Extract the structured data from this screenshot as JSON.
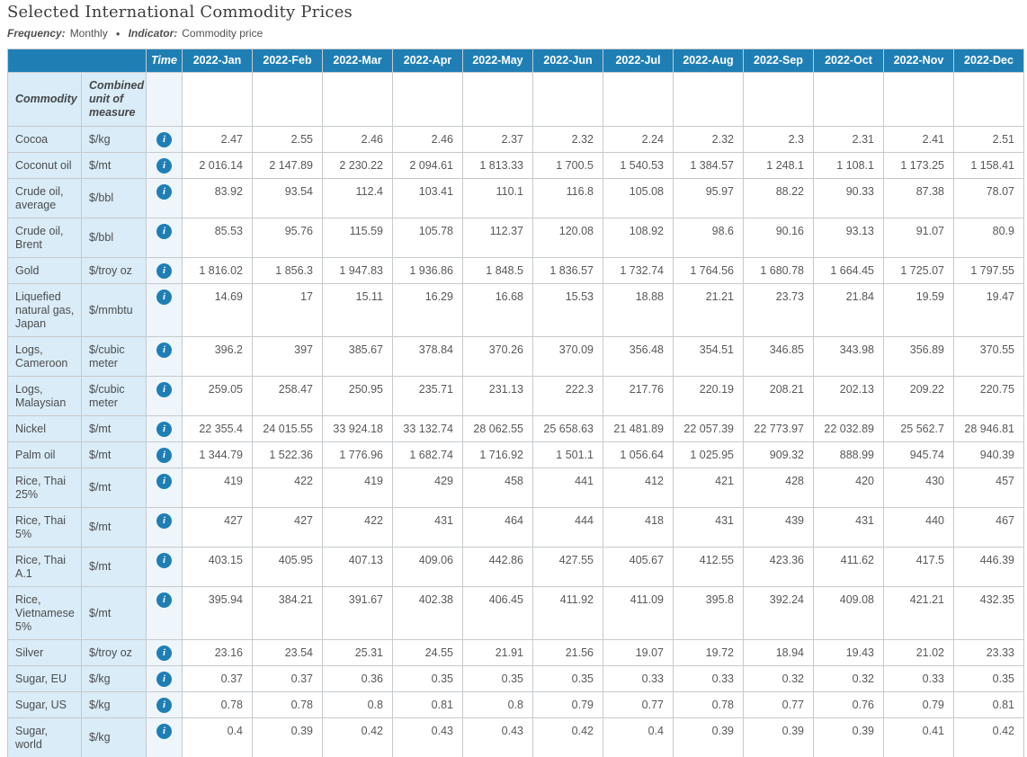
{
  "page": {
    "title": "Selected International Commodity Prices",
    "meta": {
      "frequency_label": "Frequency:",
      "frequency_value": "Monthly",
      "bullet": "●",
      "indicator_label": "Indicator:",
      "indicator_value": "Commodity price"
    }
  },
  "colors": {
    "header_blue": "#1f7fb5",
    "label_cell_blue": "#d9ecf7",
    "time_col_blue": "#eef6fb",
    "value_text": "#58585a"
  },
  "table": {
    "corner_label": "Time",
    "commodity_header": "Commodity",
    "unit_header": "Combined unit of measure",
    "info_icon_glyph": "i",
    "months": [
      "2022-Jan",
      "2022-Feb",
      "2022-Mar",
      "2022-Apr",
      "2022-May",
      "2022-Jun",
      "2022-Jul",
      "2022-Aug",
      "2022-Sep",
      "2022-Oct",
      "2022-Nov",
      "2022-Dec"
    ],
    "rows": [
      {
        "commodity": "Cocoa",
        "unit": "$/kg",
        "values": [
          "2.47",
          "2.55",
          "2.46",
          "2.46",
          "2.37",
          "2.32",
          "2.24",
          "2.32",
          "2.3",
          "2.31",
          "2.41",
          "2.51"
        ]
      },
      {
        "commodity": "Coconut oil",
        "unit": "$/mt",
        "values": [
          "2 016.14",
          "2 147.89",
          "2 230.22",
          "2 094.61",
          "1 813.33",
          "1 700.5",
          "1 540.53",
          "1 384.57",
          "1 248.1",
          "1 108.1",
          "1 173.25",
          "1 158.41"
        ]
      },
      {
        "commodity": "Crude oil, average",
        "unit": "$/bbl",
        "values": [
          "83.92",
          "93.54",
          "112.4",
          "103.41",
          "110.1",
          "116.8",
          "105.08",
          "95.97",
          "88.22",
          "90.33",
          "87.38",
          "78.07"
        ]
      },
      {
        "commodity": "Crude oil, Brent",
        "unit": "$/bbl",
        "values": [
          "85.53",
          "95.76",
          "115.59",
          "105.78",
          "112.37",
          "120.08",
          "108.92",
          "98.6",
          "90.16",
          "93.13",
          "91.07",
          "80.9"
        ]
      },
      {
        "commodity": "Gold",
        "unit": "$/troy oz",
        "values": [
          "1 816.02",
          "1 856.3",
          "1 947.83",
          "1 936.86",
          "1 848.5",
          "1 836.57",
          "1 732.74",
          "1 764.56",
          "1 680.78",
          "1 664.45",
          "1 725.07",
          "1 797.55"
        ]
      },
      {
        "commodity": "Liquefied natural gas, Japan",
        "unit": "$/mmbtu",
        "values": [
          "14.69",
          "17",
          "15.11",
          "16.29",
          "16.68",
          "15.53",
          "18.88",
          "21.21",
          "23.73",
          "21.84",
          "19.59",
          "19.47"
        ]
      },
      {
        "commodity": "Logs, Cameroon",
        "unit": "$/cubic meter",
        "values": [
          "396.2",
          "397",
          "385.67",
          "378.84",
          "370.26",
          "370.09",
          "356.48",
          "354.51",
          "346.85",
          "343.98",
          "356.89",
          "370.55"
        ]
      },
      {
        "commodity": "Logs, Malaysian",
        "unit": "$/cubic meter",
        "values": [
          "259.05",
          "258.47",
          "250.95",
          "235.71",
          "231.13",
          "222.3",
          "217.76",
          "220.19",
          "208.21",
          "202.13",
          "209.22",
          "220.75"
        ]
      },
      {
        "commodity": "Nickel",
        "unit": "$/mt",
        "values": [
          "22 355.4",
          "24 015.55",
          "33 924.18",
          "33 132.74",
          "28 062.55",
          "25 658.63",
          "21 481.89",
          "22 057.39",
          "22 773.97",
          "22 032.89",
          "25 562.7",
          "28 946.81"
        ]
      },
      {
        "commodity": "Palm oil",
        "unit": "$/mt",
        "values": [
          "1 344.79",
          "1 522.36",
          "1 776.96",
          "1 682.74",
          "1 716.92",
          "1 501.1",
          "1 056.64",
          "1 025.95",
          "909.32",
          "888.99",
          "945.74",
          "940.39"
        ]
      },
      {
        "commodity": "Rice, Thai 25%",
        "unit": "$/mt",
        "values": [
          "419",
          "422",
          "419",
          "429",
          "458",
          "441",
          "412",
          "421",
          "428",
          "420",
          "430",
          "457"
        ]
      },
      {
        "commodity": "Rice, Thai 5%",
        "unit": "$/mt",
        "values": [
          "427",
          "427",
          "422",
          "431",
          "464",
          "444",
          "418",
          "431",
          "439",
          "431",
          "440",
          "467"
        ]
      },
      {
        "commodity": "Rice, Thai A.1",
        "unit": "$/mt",
        "values": [
          "403.15",
          "405.95",
          "407.13",
          "409.06",
          "442.86",
          "427.55",
          "405.67",
          "412.55",
          "423.36",
          "411.62",
          "417.5",
          "446.39"
        ]
      },
      {
        "commodity": "Rice, Vietnamese 5%",
        "unit": "$/mt",
        "values": [
          "395.94",
          "384.21",
          "391.67",
          "402.38",
          "406.45",
          "411.92",
          "411.09",
          "395.8",
          "392.24",
          "409.08",
          "421.21",
          "432.35"
        ]
      },
      {
        "commodity": "Silver",
        "unit": "$/troy oz",
        "values": [
          "23.16",
          "23.54",
          "25.31",
          "24.55",
          "21.91",
          "21.56",
          "19.07",
          "19.72",
          "18.94",
          "19.43",
          "21.02",
          "23.33"
        ]
      },
      {
        "commodity": "Sugar, EU",
        "unit": "$/kg",
        "values": [
          "0.37",
          "0.37",
          "0.36",
          "0.35",
          "0.35",
          "0.35",
          "0.33",
          "0.33",
          "0.32",
          "0.32",
          "0.33",
          "0.35"
        ]
      },
      {
        "commodity": "Sugar, US",
        "unit": "$/kg",
        "values": [
          "0.78",
          "0.78",
          "0.8",
          "0.81",
          "0.8",
          "0.79",
          "0.77",
          "0.78",
          "0.77",
          "0.76",
          "0.79",
          "0.81"
        ]
      },
      {
        "commodity": "Sugar, world",
        "unit": "$/kg",
        "values": [
          "0.4",
          "0.39",
          "0.42",
          "0.43",
          "0.43",
          "0.42",
          "0.4",
          "0.39",
          "0.39",
          "0.39",
          "0.41",
          "0.42"
        ]
      }
    ]
  }
}
